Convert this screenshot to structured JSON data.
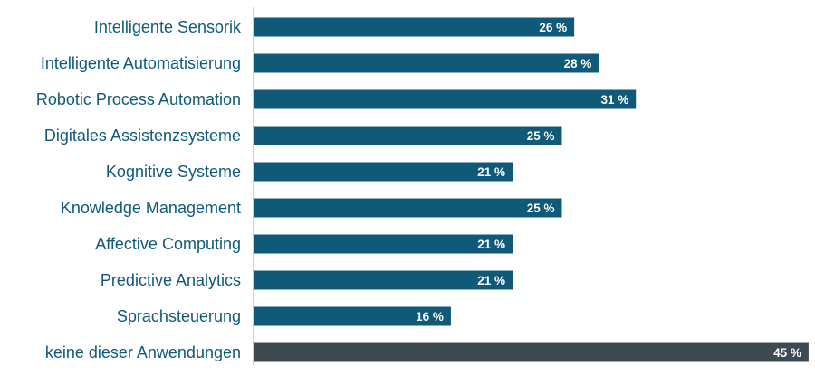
{
  "chart_data": {
    "type": "bar",
    "orientation": "horizontal",
    "categories": [
      "Intelligente Sensorik",
      "Intelligente Automatisierung",
      "Robotic Process Automation",
      "Digitales Assistenzsysteme",
      "Kognitive Systeme",
      "Knowledge Management",
      "Affective Computing",
      "Predictive Analytics",
      "Sprachsteuerung",
      "keine dieser Anwendungen"
    ],
    "values": [
      26,
      28,
      31,
      25,
      21,
      25,
      21,
      21,
      16,
      45
    ],
    "value_labels": [
      "26 %",
      "28 %",
      "31 %",
      "25 %",
      "21 %",
      "25 %",
      "21 %",
      "21 %",
      "16 %",
      "45 %"
    ],
    "unit": "%",
    "xlim": [
      0,
      45
    ],
    "grid": false,
    "legend": "none",
    "colors": {
      "bar": "#0f5a78",
      "bar_highlight": "#3d4a51",
      "label_text": "#0f5a78",
      "value_text": "#ffffff",
      "axis_line": "#c9d3d8"
    }
  }
}
